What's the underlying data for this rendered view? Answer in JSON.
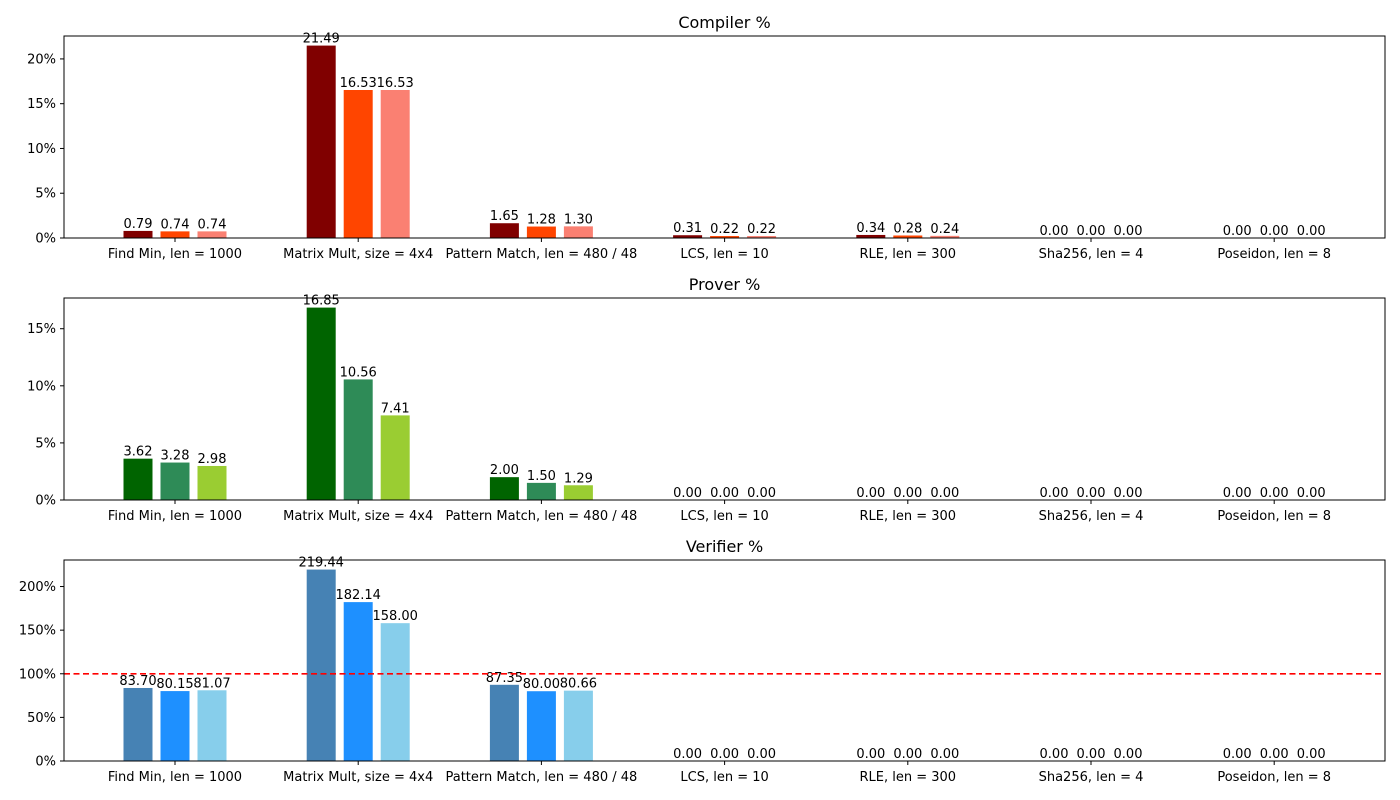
{
  "chart_data": [
    {
      "type": "bar",
      "title": "Compiler %",
      "categories": [
        "Find Min, len = 1000",
        "Matrix Mult, size = 4x4",
        "Pattern Match, len = 480 / 48",
        "LCS, len = 10",
        "RLE, len = 300",
        "Sha256, len = 4",
        "Poseidon, len = 8"
      ],
      "series": [
        {
          "values": [
            0.79,
            21.49,
            1.65,
            0.31,
            0.34,
            0.0,
            0.0
          ],
          "color": "#800000"
        },
        {
          "values": [
            0.74,
            16.53,
            1.28,
            0.22,
            0.28,
            0.0,
            0.0
          ],
          "color": "#ff4500"
        },
        {
          "values": [
            0.74,
            16.53,
            1.3,
            0.22,
            0.24,
            0.0,
            0.0
          ],
          "color": "#fa8072"
        }
      ],
      "ylim": [
        0,
        22.56
      ],
      "yticks": [
        0,
        5,
        10,
        15,
        20
      ],
      "ytick_labels": [
        "0%",
        "5%",
        "10%",
        "15%",
        "20%"
      ],
      "grid": false,
      "reference_line": null
    },
    {
      "type": "bar",
      "title": "Prover %",
      "categories": [
        "Find Min, len = 1000",
        "Matrix Mult, size = 4x4",
        "Pattern Match, len = 480 / 48",
        "LCS, len = 10",
        "RLE, len = 300",
        "Sha256, len = 4",
        "Poseidon, len = 8"
      ],
      "series": [
        {
          "values": [
            3.62,
            16.85,
            2.0,
            0.0,
            0.0,
            0.0,
            0.0
          ],
          "color": "#006400"
        },
        {
          "values": [
            3.28,
            10.56,
            1.5,
            0.0,
            0.0,
            0.0,
            0.0
          ],
          "color": "#2e8b57"
        },
        {
          "values": [
            2.98,
            7.41,
            1.29,
            0.0,
            0.0,
            0.0,
            0.0
          ],
          "color": "#9acd32"
        }
      ],
      "ylim": [
        0,
        17.69
      ],
      "yticks": [
        0,
        5,
        10,
        15
      ],
      "ytick_labels": [
        "0%",
        "5%",
        "10%",
        "15%"
      ],
      "grid": false,
      "reference_line": null
    },
    {
      "type": "bar",
      "title": "Verifier %",
      "categories": [
        "Find Min, len = 1000",
        "Matrix Mult, size = 4x4",
        "Pattern Match, len = 480 / 48",
        "LCS, len = 10",
        "RLE, len = 300",
        "Sha256, len = 4",
        "Poseidon, len = 8"
      ],
      "series": [
        {
          "values": [
            83.7,
            219.44,
            87.35,
            0.0,
            0.0,
            0.0,
            0.0
          ],
          "color": "#4682b4"
        },
        {
          "values": [
            80.15,
            182.14,
            80.0,
            0.0,
            0.0,
            0.0,
            0.0
          ],
          "color": "#1e90ff"
        },
        {
          "values": [
            81.07,
            158.0,
            80.66,
            0.0,
            0.0,
            0.0,
            0.0
          ],
          "color": "#87ceeb"
        }
      ],
      "ylim": [
        0,
        230.41
      ],
      "yticks": [
        0,
        50,
        100,
        150,
        200
      ],
      "ytick_labels": [
        "0%",
        "50%",
        "100%",
        "150%",
        "200%"
      ],
      "grid": false,
      "reference_line": {
        "y": 100,
        "color": "#ff0000",
        "style": "dashed"
      }
    }
  ]
}
